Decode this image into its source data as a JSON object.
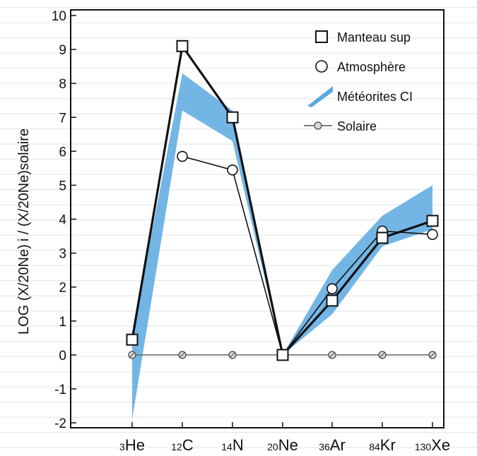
{
  "chart_data": {
    "type": "line",
    "ylabel": "LOG (X/20Ne) i / (X/20Ne)solaire",
    "ylim": [
      -2,
      10
    ],
    "yticks": [
      -2,
      -1,
      0,
      1,
      2,
      3,
      4,
      5,
      6,
      7,
      8,
      9,
      10
    ],
    "grid": false,
    "legend_position": "top-right",
    "categories": [
      {
        "mass": "3",
        "element": "He"
      },
      {
        "mass": "12",
        "element": "C"
      },
      {
        "mass": "14",
        "element": "N"
      },
      {
        "mass": "20",
        "element": "Ne"
      },
      {
        "mass": "36",
        "element": "Ar"
      },
      {
        "mass": "84",
        "element": "Kr"
      },
      {
        "mass": "130",
        "element": "Xe"
      }
    ],
    "series": [
      {
        "name": "Manteau sup",
        "marker": "square",
        "color": "#111111",
        "values": [
          0.45,
          9.1,
          7.0,
          0.0,
          1.6,
          3.45,
          3.95
        ]
      },
      {
        "name": "Atmosphère",
        "marker": "circle",
        "color": "#111111",
        "values": [
          null,
          5.85,
          5.45,
          0.0,
          1.95,
          3.65,
          3.55
        ]
      },
      {
        "name": "Solaire",
        "marker": "small-circle",
        "color": "#555555",
        "values": [
          0,
          0,
          0,
          0,
          0,
          0,
          0
        ]
      }
    ],
    "band": {
      "name": "Météorites CI",
      "color": "#5aa9e0",
      "upper": [
        0.6,
        8.3,
        7.2,
        0.0,
        2.5,
        4.1,
        5.0
      ],
      "lower": [
        -1.9,
        7.2,
        6.3,
        0.0,
        1.2,
        3.2,
        3.7
      ]
    }
  }
}
